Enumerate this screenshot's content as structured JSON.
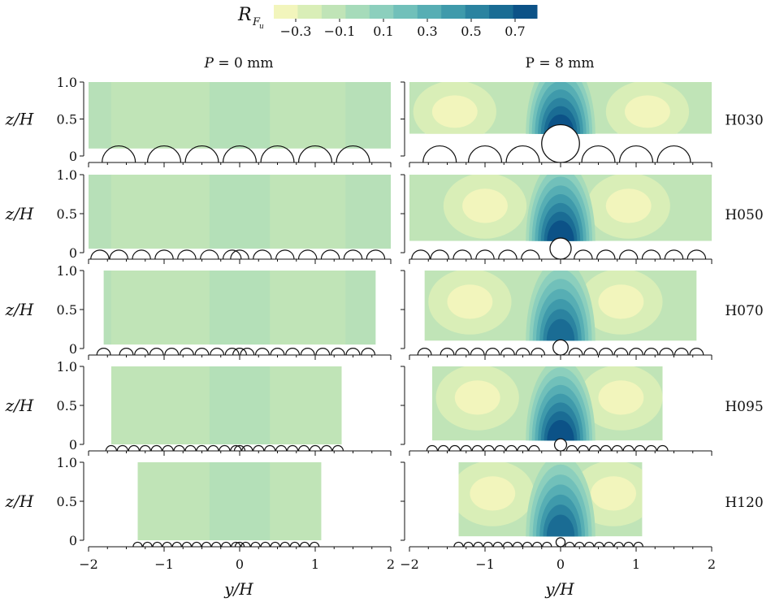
{
  "colorbar": {
    "label_main": "R",
    "label_sub": "F",
    "label_subsub": "u",
    "ticks": [
      "−0.3",
      "−0.1",
      "0.1",
      "0.3",
      "0.5",
      "0.7"
    ],
    "colors": [
      "#f2f5bc",
      "#d9eeb7",
      "#c0e4b7",
      "#a6dbba",
      "#8ccfbd",
      "#71c0ba",
      "#57aeb4",
      "#3f9aab",
      "#2b83a0",
      "#1a6c94",
      "#0c5287"
    ]
  },
  "column_titles": [
    "P = 0 mm",
    "P = 8 mm"
  ],
  "column_title_parts": [
    {
      "var": "P",
      "rest": " = 0 mm"
    },
    {
      "var": "P",
      "rest": " = 8 mm"
    }
  ],
  "row_labels": [
    "H030",
    "H050",
    "H070",
    "H095",
    "H120"
  ],
  "ylabel": "z/H",
  "xlabel": "y/H",
  "y_ticks": [
    "0",
    "0.5",
    "1.0"
  ],
  "x_ticks": [
    "−2",
    "−1",
    "0",
    "1",
    "2"
  ],
  "chart_data": {
    "type": "heatmap",
    "title": "",
    "xlabel": "y/H",
    "ylabel": "z/H",
    "xlim": [
      -2,
      2
    ],
    "ylim": [
      -0.1,
      1.0
    ],
    "colorbar_label": "R_{F_u}",
    "colorbar_range": [
      -0.4,
      0.8
    ],
    "colorbar_ticks": [
      -0.3,
      -0.1,
      0.1,
      0.3,
      0.5,
      0.7
    ],
    "columns": [
      "P = 0 mm",
      "P = 8 mm"
    ],
    "rows": [
      "H030",
      "H050",
      "H070",
      "H095",
      "H120"
    ],
    "panels": [
      {
        "row": "H030",
        "column": "P = 0 mm",
        "x_range": [
          -2.0,
          2.0
        ],
        "z_range": [
          0.1,
          1.0
        ],
        "typical_value": 0.0,
        "value_range": [
          -0.05,
          0.1
        ]
      },
      {
        "row": "H050",
        "column": "P = 0 mm",
        "x_range": [
          -2.0,
          2.0
        ],
        "z_range": [
          0.05,
          1.0
        ],
        "typical_value": 0.0,
        "value_range": [
          -0.05,
          0.1
        ]
      },
      {
        "row": "H070",
        "column": "P = 0 mm",
        "x_range": [
          -1.8,
          1.8
        ],
        "z_range": [
          0.05,
          1.0
        ],
        "typical_value": 0.0,
        "value_range": [
          -0.05,
          0.1
        ]
      },
      {
        "row": "H095",
        "column": "P = 0 mm",
        "x_range": [
          -1.7,
          1.35
        ],
        "z_range": [
          0.0,
          1.0
        ],
        "typical_value": 0.0,
        "value_range": [
          -0.05,
          0.1
        ]
      },
      {
        "row": "H120",
        "column": "P = 0 mm",
        "x_range": [
          -1.35,
          1.08
        ],
        "z_range": [
          0.0,
          1.0
        ],
        "typical_value": 0.0,
        "value_range": [
          -0.05,
          0.1
        ]
      },
      {
        "row": "H030",
        "column": "P = 8 mm",
        "x_range": [
          -2.0,
          2.0
        ],
        "z_range": [
          0.3,
          1.0
        ],
        "centre_max": 0.75,
        "side_min": -0.3,
        "side_min_y": [
          -1.4,
          1.15
        ]
      },
      {
        "row": "H050",
        "column": "P = 8 mm",
        "x_range": [
          -2.0,
          2.0
        ],
        "z_range": [
          0.15,
          1.0
        ],
        "centre_max": 0.7,
        "side_min": -0.25,
        "side_min_y": [
          -1.0,
          0.9
        ]
      },
      {
        "row": "H070",
        "column": "P = 8 mm",
        "x_range": [
          -1.8,
          1.8
        ],
        "z_range": [
          0.1,
          1.0
        ],
        "centre_max": 0.6,
        "side_min": -0.15,
        "side_min_y": [
          -1.2,
          0.8
        ]
      },
      {
        "row": "H095",
        "column": "P = 8 mm",
        "x_range": [
          -1.7,
          1.35
        ],
        "z_range": [
          0.05,
          1.0
        ],
        "centre_max": 0.7,
        "side_min": -0.15,
        "side_min_y": [
          -1.1,
          0.8
        ]
      },
      {
        "row": "H120",
        "column": "P = 8 mm",
        "x_range": [
          -1.35,
          1.08
        ],
        "z_range": [
          0.05,
          1.0
        ],
        "centre_max": 0.6,
        "side_min": -0.15,
        "side_min_y": [
          -0.9,
          0.7
        ]
      }
    ],
    "roughness": [
      {
        "row": "H030",
        "p0_positions": [
          -1.6,
          -1.0,
          -0.5,
          0.0,
          0.5,
          1.0,
          1.5
        ],
        "p8_positions": [
          -1.6,
          -1.0,
          -0.5,
          0.5,
          1.0,
          1.5
        ],
        "p8_big_element": 0.0
      },
      {
        "row": "H050",
        "p0_positions": [
          -1.85,
          -1.6,
          -1.3,
          -1.0,
          -0.7,
          -0.4,
          -0.1,
          0.0,
          0.3,
          0.6,
          0.9,
          1.2,
          1.5,
          1.8
        ],
        "p8_positions": [
          -1.85,
          -1.6,
          -1.3,
          -1.0,
          -0.7,
          -0.4,
          0.3,
          0.6,
          0.9,
          1.2,
          1.5,
          1.8
        ],
        "p8_big_element": 0.0
      },
      {
        "row": "H070",
        "p0_positions": [
          -1.8,
          -1.5,
          -1.3,
          -1.1,
          -0.9,
          -0.7,
          -0.5,
          -0.3,
          -0.1,
          0.0,
          0.1,
          0.3,
          0.5,
          0.7,
          0.9,
          1.1,
          1.3,
          1.5,
          1.7
        ],
        "p8_positions": [
          -1.8,
          -1.5,
          -1.3,
          -1.1,
          -0.9,
          -0.7,
          -0.5,
          -0.3,
          0.2,
          0.4,
          0.6,
          0.8,
          1.0,
          1.2,
          1.4,
          1.6,
          1.8
        ],
        "p8_big_element": 0.0
      },
      {
        "row": "H095",
        "p0_positions": [
          -1.7,
          -1.55,
          -1.4,
          -1.25,
          -1.1,
          -0.95,
          -0.8,
          -0.65,
          -0.5,
          -0.35,
          -0.2,
          -0.05,
          0.0,
          0.1,
          0.25,
          0.4,
          0.55,
          0.7,
          0.85,
          1.0,
          1.15,
          1.3
        ],
        "p8_positions": [
          -1.7,
          -1.55,
          -1.4,
          -1.25,
          -1.1,
          -0.95,
          -0.8,
          -0.65,
          -0.5,
          -0.35,
          0.15,
          0.3,
          0.45,
          0.6,
          0.75,
          0.9,
          1.05,
          1.2,
          1.35
        ],
        "p8_big_element": 0.0
      },
      {
        "row": "H120",
        "p0_positions": [
          -1.35,
          -1.22,
          -1.09,
          -0.96,
          -0.83,
          -0.7,
          -0.57,
          -0.44,
          -0.31,
          -0.18,
          -0.05,
          0.0,
          0.08,
          0.21,
          0.34,
          0.47,
          0.6,
          0.73,
          0.86,
          0.99
        ],
        "p8_positions": [
          -1.35,
          -1.22,
          -1.09,
          -0.96,
          -0.83,
          -0.7,
          -0.57,
          -0.44,
          -0.31,
          -0.18,
          0.12,
          0.25,
          0.38,
          0.51,
          0.64,
          0.77,
          0.9,
          1.03
        ],
        "p8_big_element": 0.0
      }
    ]
  }
}
